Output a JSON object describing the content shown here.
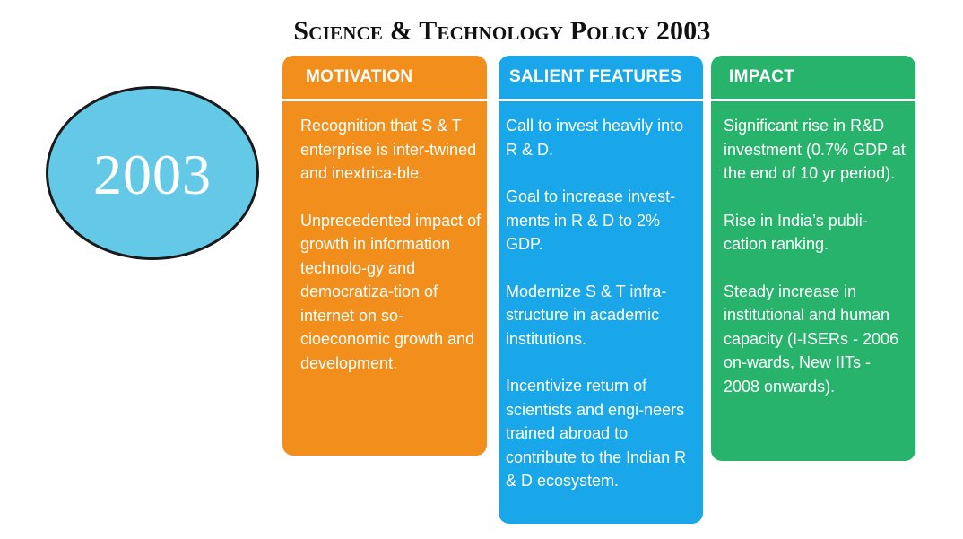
{
  "title": "Science & Technology Policy 2003",
  "year": "2003",
  "columns": [
    {
      "header": "MOTIVATION",
      "color": "#f28f1c",
      "items": [
        "Recognition that S & T enterprise is inter-twined and inextrica-ble.",
        "Unprecedented impact of growth in information technolo-gy and democratiza-tion of internet on so-cioeconomic growth and development."
      ]
    },
    {
      "header": "SALIENT FEATURES",
      "color": "#1aa7ea",
      "items": [
        "Call to invest heavily into R & D.",
        "Goal to increase invest-ments in R & D to 2% GDP.",
        "Modernize S & T infra-structure in academic institutions.",
        "Incentivize return of scientists and engi-neers trained abroad to contribute to the Indian R & D ecosystem."
      ]
    },
    {
      "header": "IMPACT",
      "color": "#27b36b",
      "items": [
        "Significant rise in R&D investment (0.7% GDP at the end of 10 yr period).",
        "Rise in India’s publi-cation ranking.",
        "Steady increase in institutional and human capacity (I-ISERs - 2006 on-wards, New IITs - 2008 onwards)."
      ]
    }
  ],
  "circle_color": "#64c9e6"
}
